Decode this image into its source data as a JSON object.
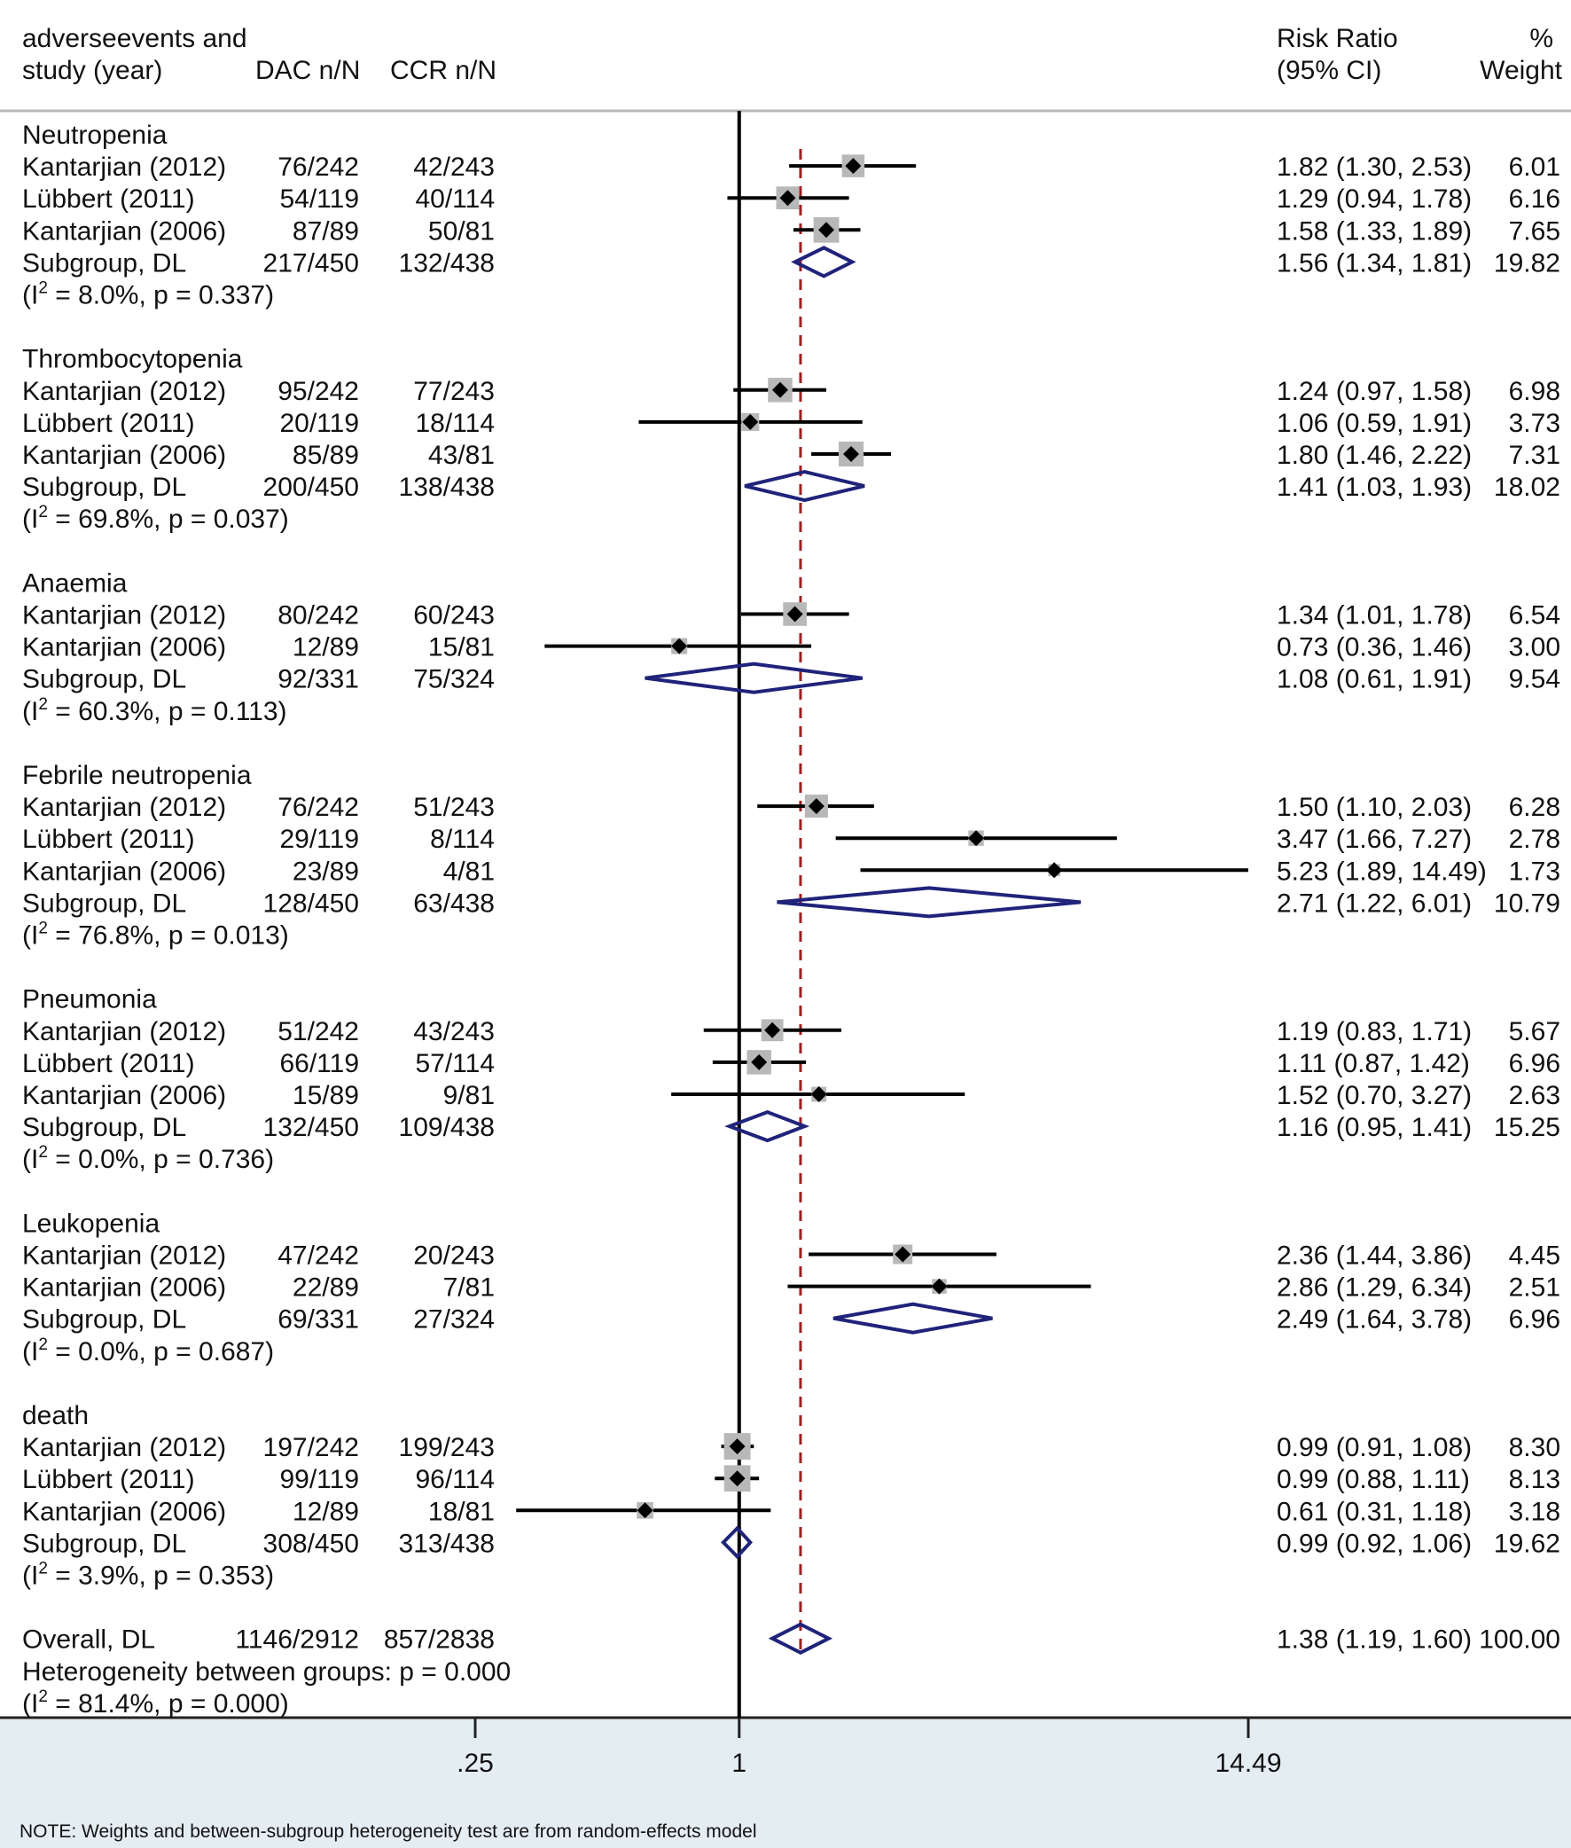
{
  "chart_data": {
    "type": "forest",
    "title": "",
    "scale": "log",
    "x_ticks": [
      {
        "value": 0.25,
        "label": ".25"
      },
      {
        "value": 1,
        "label": "1"
      },
      {
        "value": 14.49,
        "label": "14.49"
      }
    ],
    "null_line": 1,
    "overall_effect_line": 1.38,
    "headers": {
      "group_line1": "adverseevents and",
      "group_line2": "study (year)",
      "dac": "DAC n/N",
      "ccr": "CCR n/N",
      "rr_line1": "Risk Ratio",
      "rr_line2": "(95% CI)",
      "weight_line1": "%",
      "weight_line2": "Weight"
    },
    "subgroups": [
      {
        "name": "Neutropenia",
        "studies": [
          {
            "label": "Kantarjian (2012)",
            "dac": "76/242",
            "ccr": "42/243",
            "rr": 1.82,
            "lo": 1.3,
            "hi": 2.53,
            "rr_text": "1.82 (1.30, 2.53)",
            "weight": "6.01"
          },
          {
            "label": "Lübbert (2011)",
            "dac": "54/119",
            "ccr": "40/114",
            "rr": 1.29,
            "lo": 0.94,
            "hi": 1.78,
            "rr_text": "1.29 (0.94, 1.78)",
            "weight": "6.16"
          },
          {
            "label": "Kantarjian (2006)",
            "dac": "87/89",
            "ccr": "50/81",
            "rr": 1.58,
            "lo": 1.33,
            "hi": 1.89,
            "rr_text": "1.58 (1.33, 1.89)",
            "weight": "7.65"
          }
        ],
        "subtotal": {
          "label": "Subgroup, DL",
          "dac": "217/450",
          "ccr": "132/438",
          "rr": 1.56,
          "lo": 1.34,
          "hi": 1.81,
          "rr_text": "1.56 (1.34, 1.81)",
          "weight": "19.82"
        },
        "het_i2": "8.0%",
        "het_p": "0.337"
      },
      {
        "name": "Thrombocytopenia",
        "studies": [
          {
            "label": "Kantarjian (2012)",
            "dac": "95/242",
            "ccr": "77/243",
            "rr": 1.24,
            "lo": 0.97,
            "hi": 1.58,
            "rr_text": "1.24 (0.97, 1.58)",
            "weight": "6.98"
          },
          {
            "label": "Lübbert (2011)",
            "dac": "20/119",
            "ccr": "18/114",
            "rr": 1.06,
            "lo": 0.59,
            "hi": 1.91,
            "rr_text": "1.06 (0.59, 1.91)",
            "weight": "3.73"
          },
          {
            "label": "Kantarjian (2006)",
            "dac": "85/89",
            "ccr": "43/81",
            "rr": 1.8,
            "lo": 1.46,
            "hi": 2.22,
            "rr_text": "1.80 (1.46, 2.22)",
            "weight": "7.31"
          }
        ],
        "subtotal": {
          "label": "Subgroup, DL",
          "dac": "200/450",
          "ccr": "138/438",
          "rr": 1.41,
          "lo": 1.03,
          "hi": 1.93,
          "rr_text": "1.41 (1.03, 1.93)",
          "weight": "18.02"
        },
        "het_i2": "69.8%",
        "het_p": "0.037"
      },
      {
        "name": "Anaemia",
        "studies": [
          {
            "label": "Kantarjian (2012)",
            "dac": "80/242",
            "ccr": "60/243",
            "rr": 1.34,
            "lo": 1.01,
            "hi": 1.78,
            "rr_text": "1.34 (1.01, 1.78)",
            "weight": "6.54"
          },
          {
            "label": "Kantarjian (2006)",
            "dac": "12/89",
            "ccr": "15/81",
            "rr": 0.73,
            "lo": 0.36,
            "hi": 1.46,
            "rr_text": "0.73 (0.36, 1.46)",
            "weight": "3.00"
          }
        ],
        "subtotal": {
          "label": "Subgroup, DL",
          "dac": "92/331",
          "ccr": "75/324",
          "rr": 1.08,
          "lo": 0.61,
          "hi": 1.91,
          "rr_text": "1.08 (0.61, 1.91)",
          "weight": "9.54"
        },
        "het_i2": "60.3%",
        "het_p": "0.113"
      },
      {
        "name": "Febrile neutropenia",
        "studies": [
          {
            "label": "Kantarjian (2012)",
            "dac": "76/242",
            "ccr": "51/243",
            "rr": 1.5,
            "lo": 1.1,
            "hi": 2.03,
            "rr_text": "1.50 (1.10, 2.03)",
            "weight": "6.28"
          },
          {
            "label": "Lübbert (2011)",
            "dac": "29/119",
            "ccr": "8/114",
            "rr": 3.47,
            "lo": 1.66,
            "hi": 7.27,
            "rr_text": "3.47 (1.66, 7.27)",
            "weight": "2.78"
          },
          {
            "label": "Kantarjian (2006)",
            "dac": "23/89",
            "ccr": "4/81",
            "rr": 5.23,
            "lo": 1.89,
            "hi": 14.49,
            "rr_text": "5.23 (1.89, 14.49)",
            "weight": "1.73"
          }
        ],
        "subtotal": {
          "label": "Subgroup, DL",
          "dac": "128/450",
          "ccr": "63/438",
          "rr": 2.71,
          "lo": 1.22,
          "hi": 6.01,
          "rr_text": "2.71 (1.22, 6.01)",
          "weight": "10.79"
        },
        "het_i2": "76.8%",
        "het_p": "0.013"
      },
      {
        "name": "Pneumonia",
        "studies": [
          {
            "label": "Kantarjian (2012)",
            "dac": "51/242",
            "ccr": "43/243",
            "rr": 1.19,
            "lo": 0.83,
            "hi": 1.71,
            "rr_text": "1.19 (0.83, 1.71)",
            "weight": "5.67"
          },
          {
            "label": "Lübbert (2011)",
            "dac": "66/119",
            "ccr": "57/114",
            "rr": 1.11,
            "lo": 0.87,
            "hi": 1.42,
            "rr_text": "1.11 (0.87, 1.42)",
            "weight": "6.96"
          },
          {
            "label": "Kantarjian (2006)",
            "dac": "15/89",
            "ccr": "9/81",
            "rr": 1.52,
            "lo": 0.7,
            "hi": 3.27,
            "rr_text": "1.52 (0.70, 3.27)",
            "weight": "2.63"
          }
        ],
        "subtotal": {
          "label": "Subgroup, DL",
          "dac": "132/450",
          "ccr": "109/438",
          "rr": 1.16,
          "lo": 0.95,
          "hi": 1.41,
          "rr_text": "1.16 (0.95, 1.41)",
          "weight": "15.25"
        },
        "het_i2": "0.0%",
        "het_p": "0.736"
      },
      {
        "name": "Leukopenia",
        "studies": [
          {
            "label": "Kantarjian (2012)",
            "dac": "47/242",
            "ccr": "20/243",
            "rr": 2.36,
            "lo": 1.44,
            "hi": 3.86,
            "rr_text": "2.36 (1.44, 3.86)",
            "weight": "4.45"
          },
          {
            "label": "Kantarjian (2006)",
            "dac": "22/89",
            "ccr": "7/81",
            "rr": 2.86,
            "lo": 1.29,
            "hi": 6.34,
            "rr_text": "2.86 (1.29, 6.34)",
            "weight": "2.51"
          }
        ],
        "subtotal": {
          "label": "Subgroup, DL",
          "dac": "69/331",
          "ccr": "27/324",
          "rr": 2.49,
          "lo": 1.64,
          "hi": 3.78,
          "rr_text": "2.49 (1.64, 3.78)",
          "weight": "6.96"
        },
        "het_i2": "0.0%",
        "het_p": "0.687"
      },
      {
        "name": "death",
        "studies": [
          {
            "label": "Kantarjian (2012)",
            "dac": "197/242",
            "ccr": "199/243",
            "rr": 0.99,
            "lo": 0.91,
            "hi": 1.08,
            "rr_text": "0.99 (0.91, 1.08)",
            "weight": "8.30"
          },
          {
            "label": "Lübbert (2011)",
            "dac": "99/119",
            "ccr": "96/114",
            "rr": 0.99,
            "lo": 0.88,
            "hi": 1.11,
            "rr_text": "0.99 (0.88, 1.11)",
            "weight": "8.13"
          },
          {
            "label": "Kantarjian (2006)",
            "dac": "12/89",
            "ccr": "18/81",
            "rr": 0.61,
            "lo": 0.31,
            "hi": 1.18,
            "rr_text": "0.61 (0.31, 1.18)",
            "weight": "3.18"
          }
        ],
        "subtotal": {
          "label": "Subgroup, DL",
          "dac": "308/450",
          "ccr": "313/438",
          "rr": 0.99,
          "lo": 0.92,
          "hi": 1.06,
          "rr_text": "0.99 (0.92, 1.06)",
          "weight": "19.62"
        },
        "het_i2": "3.9%",
        "het_p": "0.353"
      }
    ],
    "overall": {
      "label": "Overall, DL",
      "dac": "1146/2912",
      "ccr": "857/2838",
      "rr": 1.38,
      "lo": 1.19,
      "hi": 1.6,
      "rr_text": "1.38 (1.19, 1.60)",
      "weight": "100.00",
      "between_groups": "Heterogeneity between groups: p = 0.000",
      "het_i2": "81.4%",
      "het_p": "0.000"
    },
    "note": "NOTE: Weights and between-subgroup heterogeneity test are from random-effects model",
    "colors": {
      "point": "#000000",
      "weight_box": "#b8b8b8",
      "diamond": "#1f237a",
      "overall_line": "#a02020",
      "axis_band": "#e4edf2"
    }
  }
}
